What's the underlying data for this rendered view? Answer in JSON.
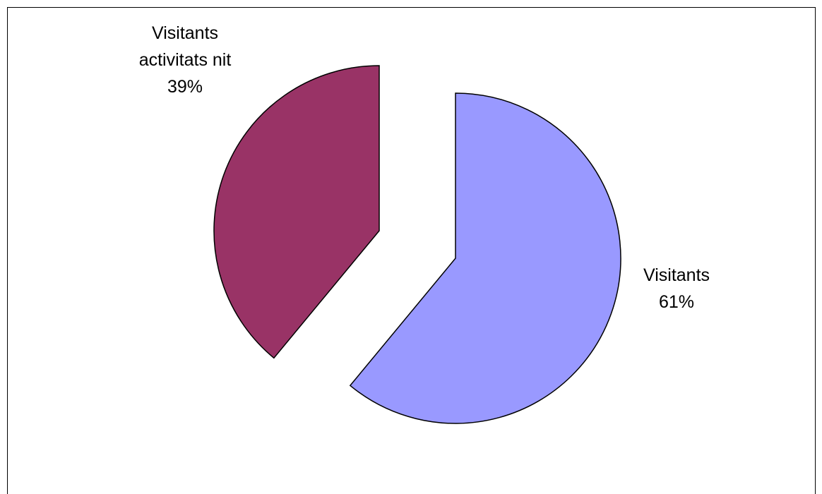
{
  "chart_data": {
    "type": "pie",
    "title": "",
    "slices": [
      {
        "label_lines": [
          "Visitants"
        ],
        "value": 61,
        "value_label": "61%",
        "color": "#9999FF"
      },
      {
        "label_lines": [
          "Visitants",
          "activitats nit"
        ],
        "value": 39,
        "value_label": "39%",
        "color": "#993366"
      }
    ],
    "start_angle_deg": 0,
    "direction": "clockwise",
    "exploded": true,
    "border_color": "#000000"
  }
}
